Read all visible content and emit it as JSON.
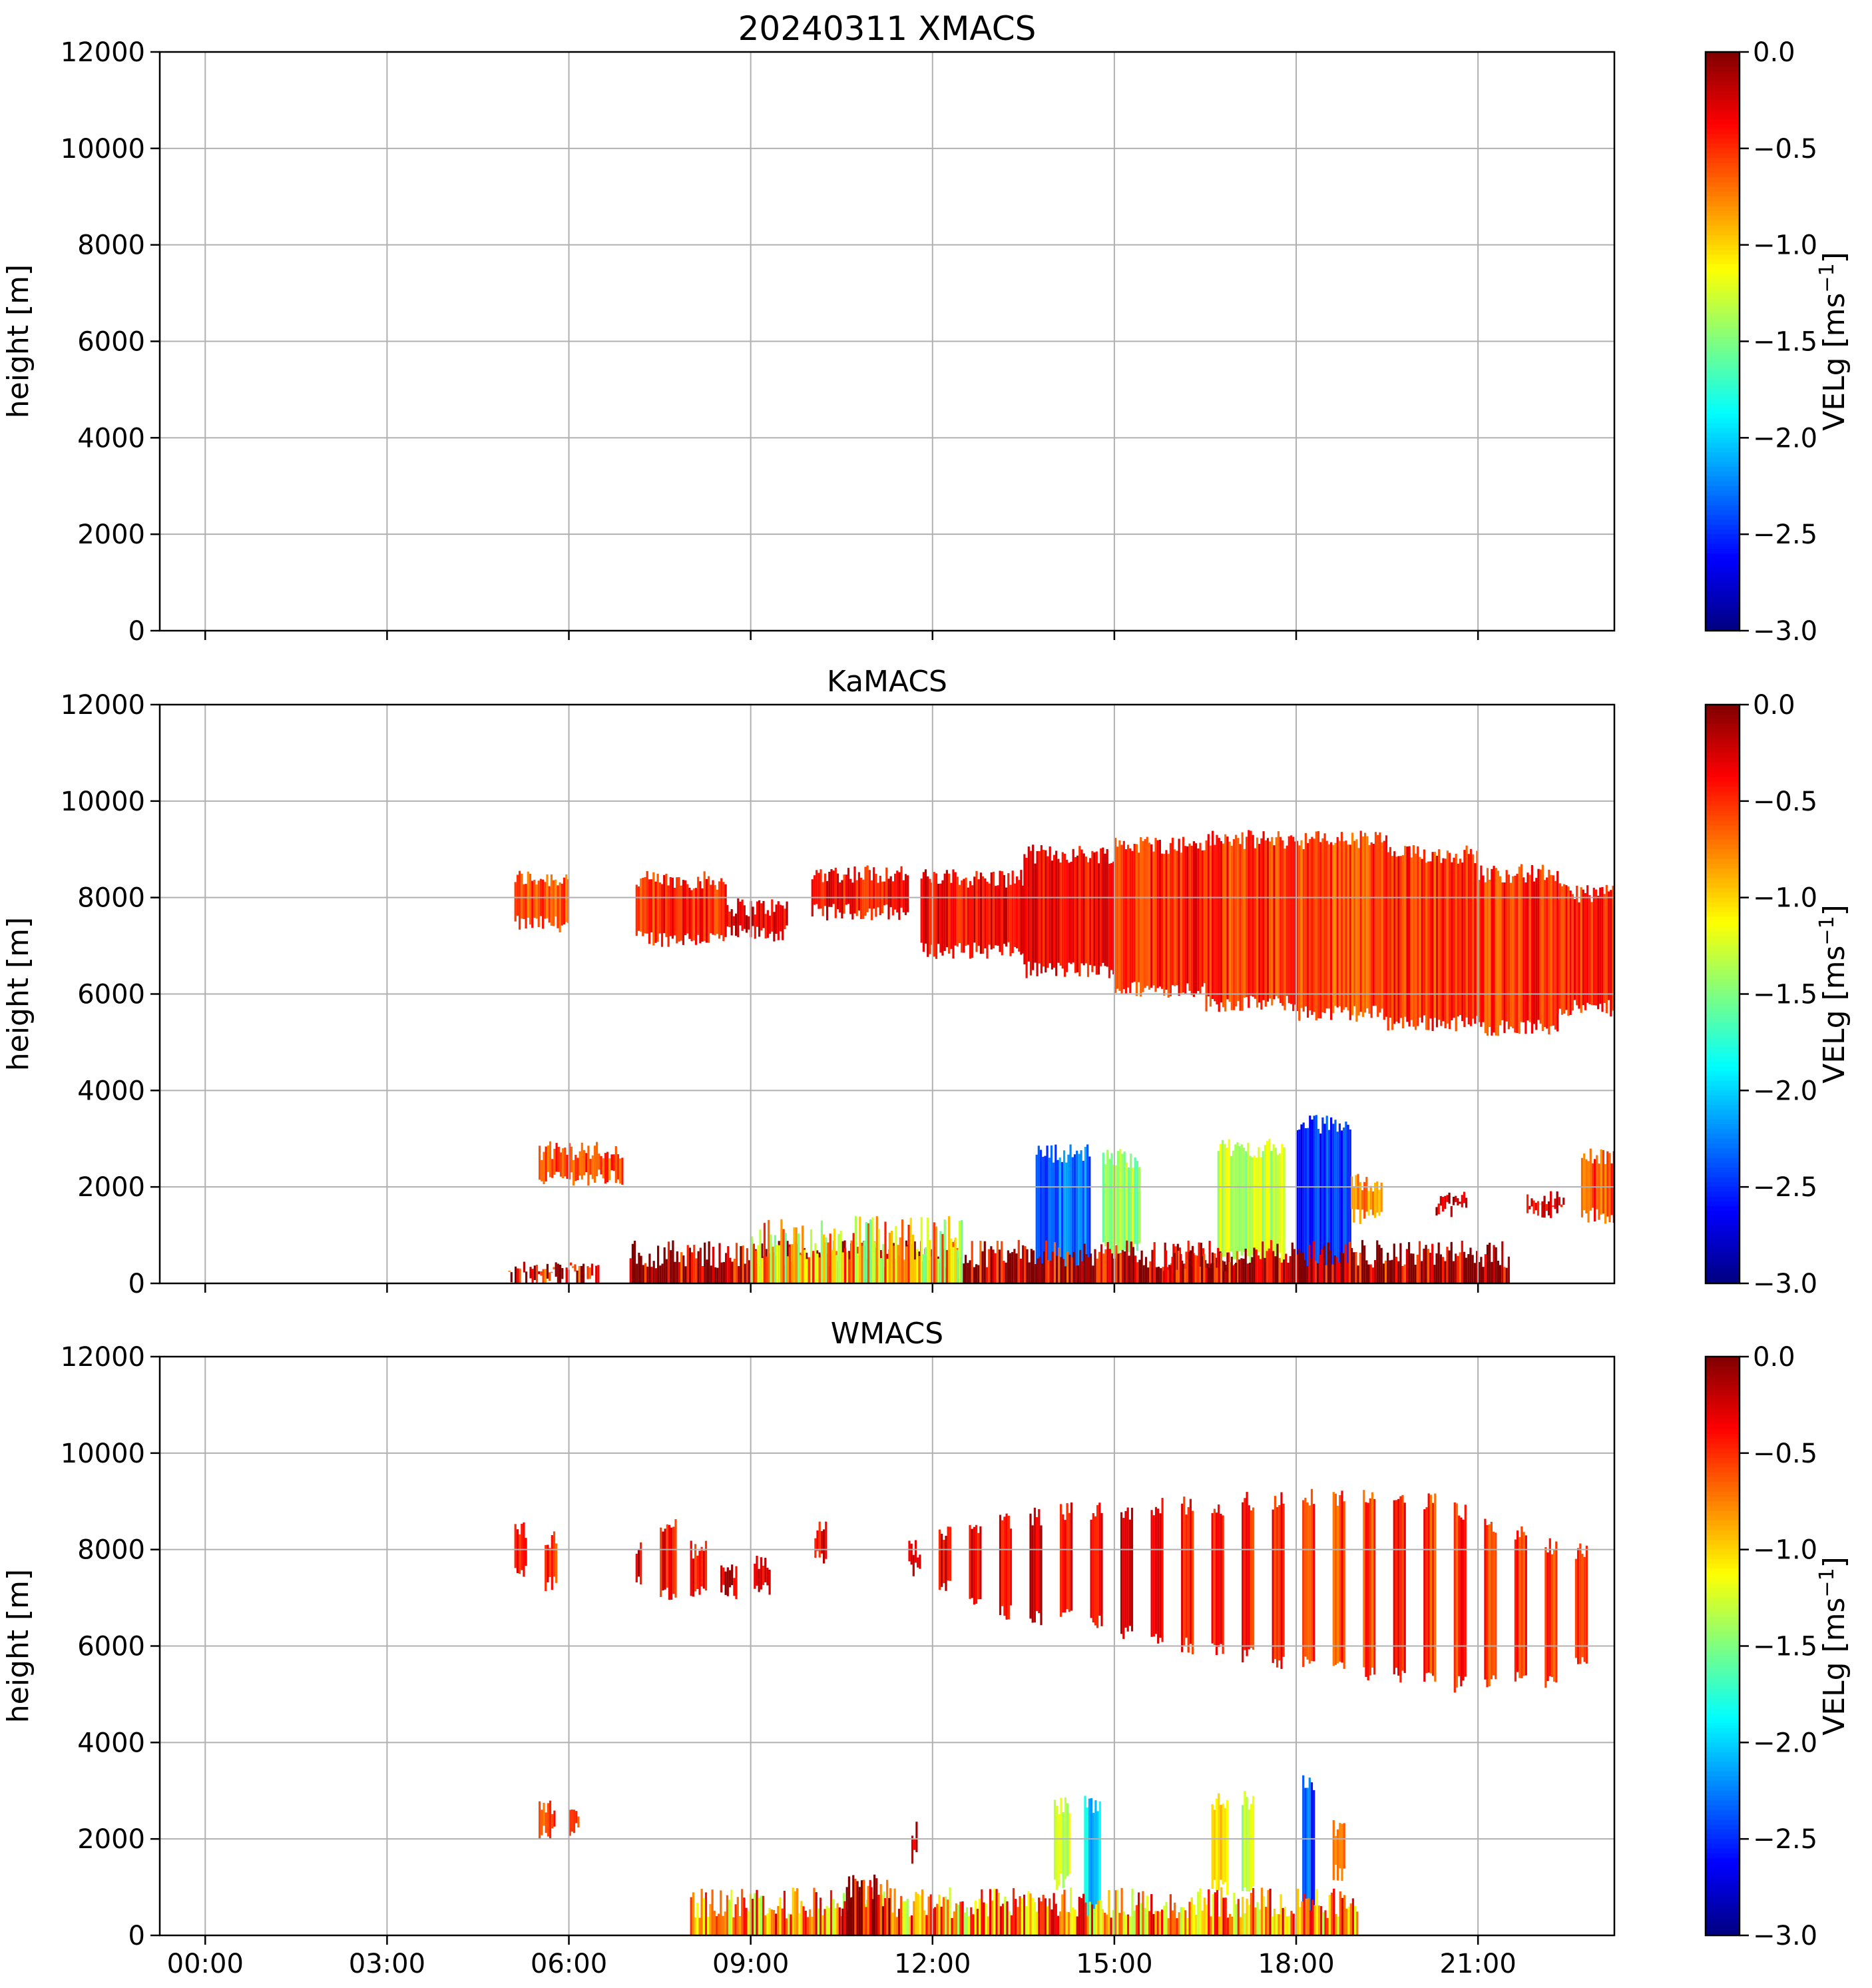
{
  "figure": {
    "title": "20240311 XMACS",
    "colors": {
      "background": "#ffffff",
      "grid": "#b0b0b0",
      "axis": "#000000",
      "colormap": "jet"
    }
  },
  "chart_data": [
    {
      "type": "heatmap",
      "title": "20240311 XMACS",
      "xlabel": "",
      "ylabel": "height [m]",
      "xlim": [
        "-00:45",
        "23:15"
      ],
      "ylim": [
        0,
        12000
      ],
      "x_ticks": [
        "00:00",
        "03:00",
        "06:00",
        "09:00",
        "12:00",
        "15:00",
        "18:00",
        "21:00"
      ],
      "x_ticklabels_visible": false,
      "y_ticks": [
        "0",
        "2000",
        "4000",
        "6000",
        "8000",
        "10000",
        "12000"
      ],
      "grid": true,
      "colorbar": {
        "label": "VELg [ms",
        "label_superscript": "−1",
        "label_suffix": "]",
        "range": [
          -3.0,
          0.0
        ],
        "ticks": [
          "0.0",
          "−0.5",
          "−1.0",
          "−1.5",
          "−2.0",
          "−2.5",
          "−3.0"
        ],
        "colormap": "jet"
      },
      "features": []
    },
    {
      "type": "heatmap",
      "title": "KaMACS",
      "xlabel": "",
      "ylabel": "height [m]",
      "xlim": [
        "-00:45",
        "23:15"
      ],
      "ylim": [
        0,
        12000
      ],
      "x_ticks": [
        "00:00",
        "03:00",
        "06:00",
        "09:00",
        "12:00",
        "15:00",
        "18:00",
        "21:00"
      ],
      "x_ticklabels_visible": false,
      "y_ticks": [
        "0",
        "2000",
        "4000",
        "6000",
        "8000",
        "10000",
        "12000"
      ],
      "grid": true,
      "colorbar": {
        "label": "VELg [ms",
        "label_superscript": "−1",
        "label_suffix": "]",
        "range": [
          -3.0,
          0.0
        ],
        "ticks": [
          "0.0",
          "−0.5",
          "−1.0",
          "−1.5",
          "−2.0",
          "−2.5",
          "−3.0"
        ],
        "colormap": "jet"
      },
      "features": [
        {
          "kind": "cloud",
          "t0": 5.1,
          "t1": 6.0,
          "bottom": 7450,
          "top": 8400,
          "vel": -0.6
        },
        {
          "kind": "cloud",
          "t0": 7.1,
          "t1": 8.6,
          "bottom": 7150,
          "top": 8350,
          "vel": -0.5
        },
        {
          "kind": "cloud",
          "t0": 8.6,
          "t1": 9.6,
          "bottom": 7250,
          "top": 7800,
          "vel": -0.3
        },
        {
          "kind": "cloud",
          "t0": 10.0,
          "t1": 11.6,
          "bottom": 7700,
          "top": 8500,
          "vel": -0.4
        },
        {
          "kind": "cloud",
          "t0": 11.8,
          "t1": 13.5,
          "bottom": 6900,
          "top": 8400,
          "vel": -0.35
        },
        {
          "kind": "cloud",
          "t0": 13.5,
          "t1": 15.0,
          "bottom": 6500,
          "top": 8900,
          "vel": -0.4
        },
        {
          "kind": "cloud",
          "t0": 15.0,
          "t1": 16.5,
          "bottom": 6100,
          "top": 9100,
          "vel": -0.45
        },
        {
          "kind": "cloud",
          "t0": 16.5,
          "t1": 18.0,
          "bottom": 5800,
          "top": 9200,
          "vel": -0.5
        },
        {
          "kind": "cloud",
          "t0": 18.0,
          "t1": 19.5,
          "bottom": 5600,
          "top": 9200,
          "vel": -0.55
        },
        {
          "kind": "cloud",
          "t0": 19.5,
          "t1": 21.0,
          "bottom": 5400,
          "top": 8900,
          "vel": -0.5
        },
        {
          "kind": "cloud",
          "t0": 21.0,
          "t1": 22.3,
          "bottom": 5300,
          "top": 8500,
          "vel": -0.5
        },
        {
          "kind": "cloud",
          "t0": 22.3,
          "t1": 23.25,
          "bottom": 5700,
          "top": 8100,
          "vel": -0.45
        },
        {
          "kind": "cloud",
          "t0": 5.5,
          "t1": 6.9,
          "bottom": 2200,
          "top": 2750,
          "vel": -0.6
        },
        {
          "kind": "cloud",
          "t0": 13.7,
          "t1": 14.6,
          "bottom": 0,
          "top": 2700,
          "vel": -2.3
        },
        {
          "kind": "cloud",
          "t0": 14.8,
          "t1": 15.4,
          "bottom": 700,
          "top": 2600,
          "vel": -1.4
        },
        {
          "kind": "cloud",
          "t0": 16.7,
          "t1": 17.8,
          "bottom": 500,
          "top": 2800,
          "vel": -1.3
        },
        {
          "kind": "cloud",
          "t0": 18.0,
          "t1": 18.9,
          "bottom": 0,
          "top": 3300,
          "vel": -2.5
        },
        {
          "kind": "cloud",
          "t0": 18.9,
          "t1": 19.4,
          "bottom": 1400,
          "top": 2100,
          "vel": -0.8
        },
        {
          "kind": "cloud",
          "t0": 22.7,
          "t1": 23.25,
          "bottom": 1400,
          "top": 2600,
          "vel": -0.6
        },
        {
          "kind": "cloud",
          "t0": 20.3,
          "t1": 20.8,
          "bottom": 1550,
          "top": 1750,
          "vel": -0.2
        },
        {
          "kind": "cloud",
          "t0": 21.8,
          "t1": 22.4,
          "bottom": 1500,
          "top": 1800,
          "vel": -0.3
        },
        {
          "kind": "low",
          "t0": 7.0,
          "t1": 21.5,
          "bottom": 0,
          "top": 900,
          "vel": -0.1
        },
        {
          "kind": "low",
          "t0": 9.0,
          "t1": 12.5,
          "bottom": 0,
          "top": 1400,
          "vel": -1.0
        },
        {
          "kind": "low",
          "t0": 15.8,
          "t1": 17.0,
          "bottom": 0,
          "top": 700,
          "vel": -0.2
        },
        {
          "kind": "low",
          "t0": 5.0,
          "t1": 6.5,
          "bottom": 100,
          "top": 450,
          "vel": -0.2
        }
      ]
    },
    {
      "type": "heatmap",
      "title": "WMACS",
      "xlabel": "",
      "ylabel": "height [m]",
      "xlim": [
        "-00:45",
        "23:15"
      ],
      "ylim": [
        0,
        12000
      ],
      "x_ticks": [
        "00:00",
        "03:00",
        "06:00",
        "09:00",
        "12:00",
        "15:00",
        "18:00",
        "21:00"
      ],
      "x_ticklabels_visible": true,
      "y_ticks": [
        "0",
        "2000",
        "4000",
        "6000",
        "8000",
        "10000",
        "12000"
      ],
      "grid": true,
      "colorbar": {
        "label": "VELg [ms",
        "label_superscript": "−1",
        "label_suffix": "]",
        "range": [
          -3.0,
          0.0
        ],
        "ticks": [
          "0.0",
          "−0.5",
          "−1.0",
          "−1.5",
          "−2.0",
          "−2.5",
          "−3.0"
        ],
        "colormap": "jet"
      },
      "features": [
        {
          "kind": "cloud",
          "t0": 5.1,
          "t1": 5.3,
          "bottom": 7600,
          "top": 8400,
          "vel": -0.5
        },
        {
          "kind": "cloud",
          "t0": 5.6,
          "t1": 5.8,
          "bottom": 7300,
          "top": 8200,
          "vel": -0.5
        },
        {
          "kind": "cloud",
          "t0": 7.1,
          "t1": 7.2,
          "bottom": 7300,
          "top": 8100,
          "vel": -0.3
        },
        {
          "kind": "cloud",
          "t0": 7.5,
          "t1": 7.75,
          "bottom": 7100,
          "top": 8500,
          "vel": -0.4
        },
        {
          "kind": "cloud",
          "t0": 8.0,
          "t1": 8.25,
          "bottom": 7100,
          "top": 8000,
          "vel": -0.4
        },
        {
          "kind": "cloud",
          "t0": 8.5,
          "t1": 8.75,
          "bottom": 7100,
          "top": 7600,
          "vel": -0.2
        },
        {
          "kind": "cloud",
          "t0": 9.05,
          "t1": 9.3,
          "bottom": 7200,
          "top": 7700,
          "vel": -0.3
        },
        {
          "kind": "cloud",
          "t0": 10.05,
          "t1": 10.25,
          "bottom": 7800,
          "top": 8400,
          "vel": -0.3
        },
        {
          "kind": "cloud",
          "t0": 11.6,
          "t1": 11.8,
          "bottom": 7600,
          "top": 8000,
          "vel": -0.3
        },
        {
          "kind": "cloud",
          "t0": 12.1,
          "t1": 12.3,
          "bottom": 7300,
          "top": 8300,
          "vel": -0.3
        },
        {
          "kind": "cloud",
          "t0": 12.6,
          "t1": 12.8,
          "bottom": 6900,
          "top": 8400,
          "vel": -0.3
        },
        {
          "kind": "cloud",
          "t0": 13.1,
          "t1": 13.3,
          "bottom": 6700,
          "top": 8600,
          "vel": -0.3
        },
        {
          "kind": "cloud",
          "t0": 13.6,
          "t1": 13.8,
          "bottom": 6600,
          "top": 8700,
          "vel": -0.3
        },
        {
          "kind": "cloud",
          "t0": 14.1,
          "t1": 14.3,
          "bottom": 6600,
          "top": 8800,
          "vel": -0.3
        },
        {
          "kind": "cloud",
          "t0": 14.6,
          "t1": 14.8,
          "bottom": 6500,
          "top": 8800,
          "vel": -0.3
        },
        {
          "kind": "cloud",
          "t0": 15.1,
          "t1": 15.3,
          "bottom": 6300,
          "top": 8800,
          "vel": -0.35
        },
        {
          "kind": "cloud",
          "t0": 15.6,
          "t1": 15.8,
          "bottom": 6100,
          "top": 8900,
          "vel": -0.35
        },
        {
          "kind": "cloud",
          "t0": 16.1,
          "t1": 16.3,
          "bottom": 6000,
          "top": 8900,
          "vel": -0.4
        },
        {
          "kind": "cloud",
          "t0": 16.6,
          "t1": 16.8,
          "bottom": 5900,
          "top": 8900,
          "vel": -0.45
        },
        {
          "kind": "cloud",
          "t0": 17.1,
          "t1": 17.3,
          "bottom": 5800,
          "top": 9000,
          "vel": -0.5
        },
        {
          "kind": "cloud",
          "t0": 17.6,
          "t1": 17.8,
          "bottom": 5700,
          "top": 9000,
          "vel": -0.5
        },
        {
          "kind": "cloud",
          "t0": 18.1,
          "t1": 18.3,
          "bottom": 5700,
          "top": 9100,
          "vel": -0.55
        },
        {
          "kind": "cloud",
          "t0": 18.6,
          "t1": 18.8,
          "bottom": 5600,
          "top": 9100,
          "vel": -0.55
        },
        {
          "kind": "cloud",
          "t0": 19.1,
          "t1": 19.3,
          "bottom": 5400,
          "top": 9100,
          "vel": -0.55
        },
        {
          "kind": "cloud",
          "t0": 19.6,
          "t1": 19.8,
          "bottom": 5400,
          "top": 9000,
          "vel": -0.5
        },
        {
          "kind": "cloud",
          "t0": 20.1,
          "t1": 20.3,
          "bottom": 5300,
          "top": 9000,
          "vel": -0.5
        },
        {
          "kind": "cloud",
          "t0": 20.6,
          "t1": 20.8,
          "bottom": 5200,
          "top": 8800,
          "vel": -0.5
        },
        {
          "kind": "cloud",
          "t0": 21.1,
          "t1": 21.3,
          "bottom": 5300,
          "top": 8500,
          "vel": -0.5
        },
        {
          "kind": "cloud",
          "t0": 21.6,
          "t1": 21.8,
          "bottom": 5300,
          "top": 8300,
          "vel": -0.5
        },
        {
          "kind": "cloud",
          "t0": 22.1,
          "t1": 22.3,
          "bottom": 5300,
          "top": 8100,
          "vel": -0.5
        },
        {
          "kind": "cloud",
          "t0": 22.6,
          "t1": 22.8,
          "bottom": 5600,
          "top": 8000,
          "vel": -0.45
        },
        {
          "kind": "cloud",
          "t0": 5.5,
          "t1": 5.75,
          "bottom": 2100,
          "top": 2700,
          "vel": -0.6
        },
        {
          "kind": "cloud",
          "t0": 6.0,
          "t1": 6.15,
          "bottom": 2200,
          "top": 2600,
          "vel": -0.6
        },
        {
          "kind": "cloud",
          "t0": 14.0,
          "t1": 14.25,
          "bottom": 1100,
          "top": 2700,
          "vel": -1.2
        },
        {
          "kind": "cloud",
          "t0": 14.5,
          "t1": 14.75,
          "bottom": 0,
          "top": 2700,
          "vel": -2.0
        },
        {
          "kind": "cloud",
          "t0": 16.6,
          "t1": 16.85,
          "bottom": 1000,
          "top": 2800,
          "vel": -1.0
        },
        {
          "kind": "cloud",
          "t0": 17.1,
          "t1": 17.3,
          "bottom": 1000,
          "top": 2800,
          "vel": -1.3
        },
        {
          "kind": "cloud",
          "t0": 18.1,
          "t1": 18.3,
          "bottom": 0,
          "top": 3200,
          "vel": -2.4
        },
        {
          "kind": "cloud",
          "t0": 18.6,
          "t1": 18.8,
          "bottom": 1300,
          "top": 2200,
          "vel": -0.7
        },
        {
          "kind": "cloud",
          "t0": 11.65,
          "t1": 11.75,
          "bottom": 1600,
          "top": 2200,
          "vel": -0.3
        },
        {
          "kind": "low",
          "t0": 8.0,
          "t1": 19.0,
          "bottom": 0,
          "top": 1000,
          "vel": -0.8
        },
        {
          "kind": "low",
          "t0": 10.5,
          "t1": 11.3,
          "bottom": 0,
          "top": 1400,
          "vel": -0.2
        }
      ]
    }
  ]
}
